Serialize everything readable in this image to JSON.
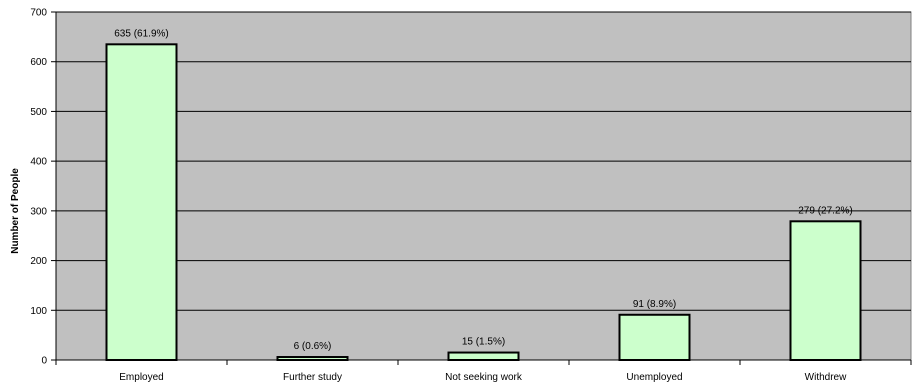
{
  "chart_data": {
    "type": "bar",
    "ylabel": "Number of People",
    "xlabel": "",
    "ylim": [
      0,
      700
    ],
    "yticks": [
      0,
      100,
      200,
      300,
      400,
      500,
      600,
      700
    ],
    "grid": true,
    "categories": [
      "Employed",
      "Further study",
      "Not seeking work",
      "Unemployed",
      "Withdrew"
    ],
    "values": [
      635,
      6,
      15,
      91,
      279
    ],
    "data_labels": [
      "635 (61.9%)",
      "6 (0.6%)",
      "15 (1.5%)",
      "91 (8.9%)",
      "279 (27.2%)"
    ],
    "colors": {
      "plot_background": "#c0c0c0",
      "bar_fill": "#ccffcc",
      "bar_stroke": "#000000",
      "gridline": "#000000"
    }
  }
}
